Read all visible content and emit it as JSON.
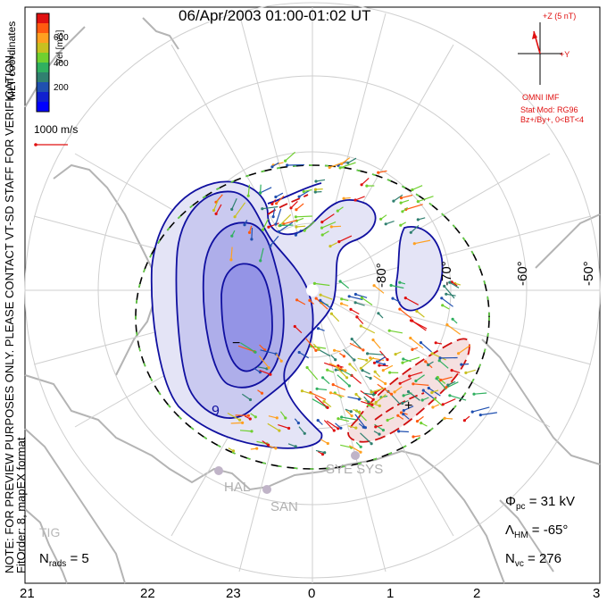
{
  "title": "06/Apr/2003 01:00-01:02 UT",
  "colorbar": {
    "label": "Vel [m/s]",
    "ticks": [
      "600",
      "400",
      "200"
    ],
    "colors": [
      "#e01010",
      "#ff5a10",
      "#ffa020",
      "#c8c020",
      "#70d030",
      "#30b060",
      "#308070",
      "#2050b0",
      "#1020d0",
      "#0000ff"
    ]
  },
  "coords_label": "MLT coordinates",
  "scale_vector": "1000 m/s",
  "side_note": "NOTE: FOR PREVIEW PURPOSES ONLY. PLEASE CONTACT VT-SD STAFF FOR VERIFICATION.",
  "fit_order": "FitOrder: 8, mapEX format",
  "imf": {
    "z_label": "+Z (5 nT)",
    "y_label": "+Y",
    "source": "OMNI IMF",
    "model": "Stat Mod: RG96",
    "model_detail": "Bz+/By+, 0<BT<4"
  },
  "latitudes": [
    "-80°",
    "-70°",
    "-60°",
    "-50°"
  ],
  "mlt_ticks": [
    "21",
    "22",
    "23",
    "0",
    "1",
    "2",
    "3"
  ],
  "stations": [
    "HAL",
    "SAN",
    "SYE SYS",
    "TIG"
  ],
  "stats": {
    "nrads_sym": "N",
    "nrads_sub": "rads",
    "nrads_val": "= 5",
    "phi_sym": "Φ",
    "phi_sub": "pc",
    "phi_val": "= 31 kV",
    "lambda_sym": "Λ",
    "lambda_sub": "HM",
    "lambda_val": "= -65°",
    "nvc_sym": "N",
    "nvc_sub": "vc",
    "nvc_val": "= 276"
  },
  "contour_labels": {
    "minus": "−",
    "plus": "+",
    "nine": "9"
  }
}
